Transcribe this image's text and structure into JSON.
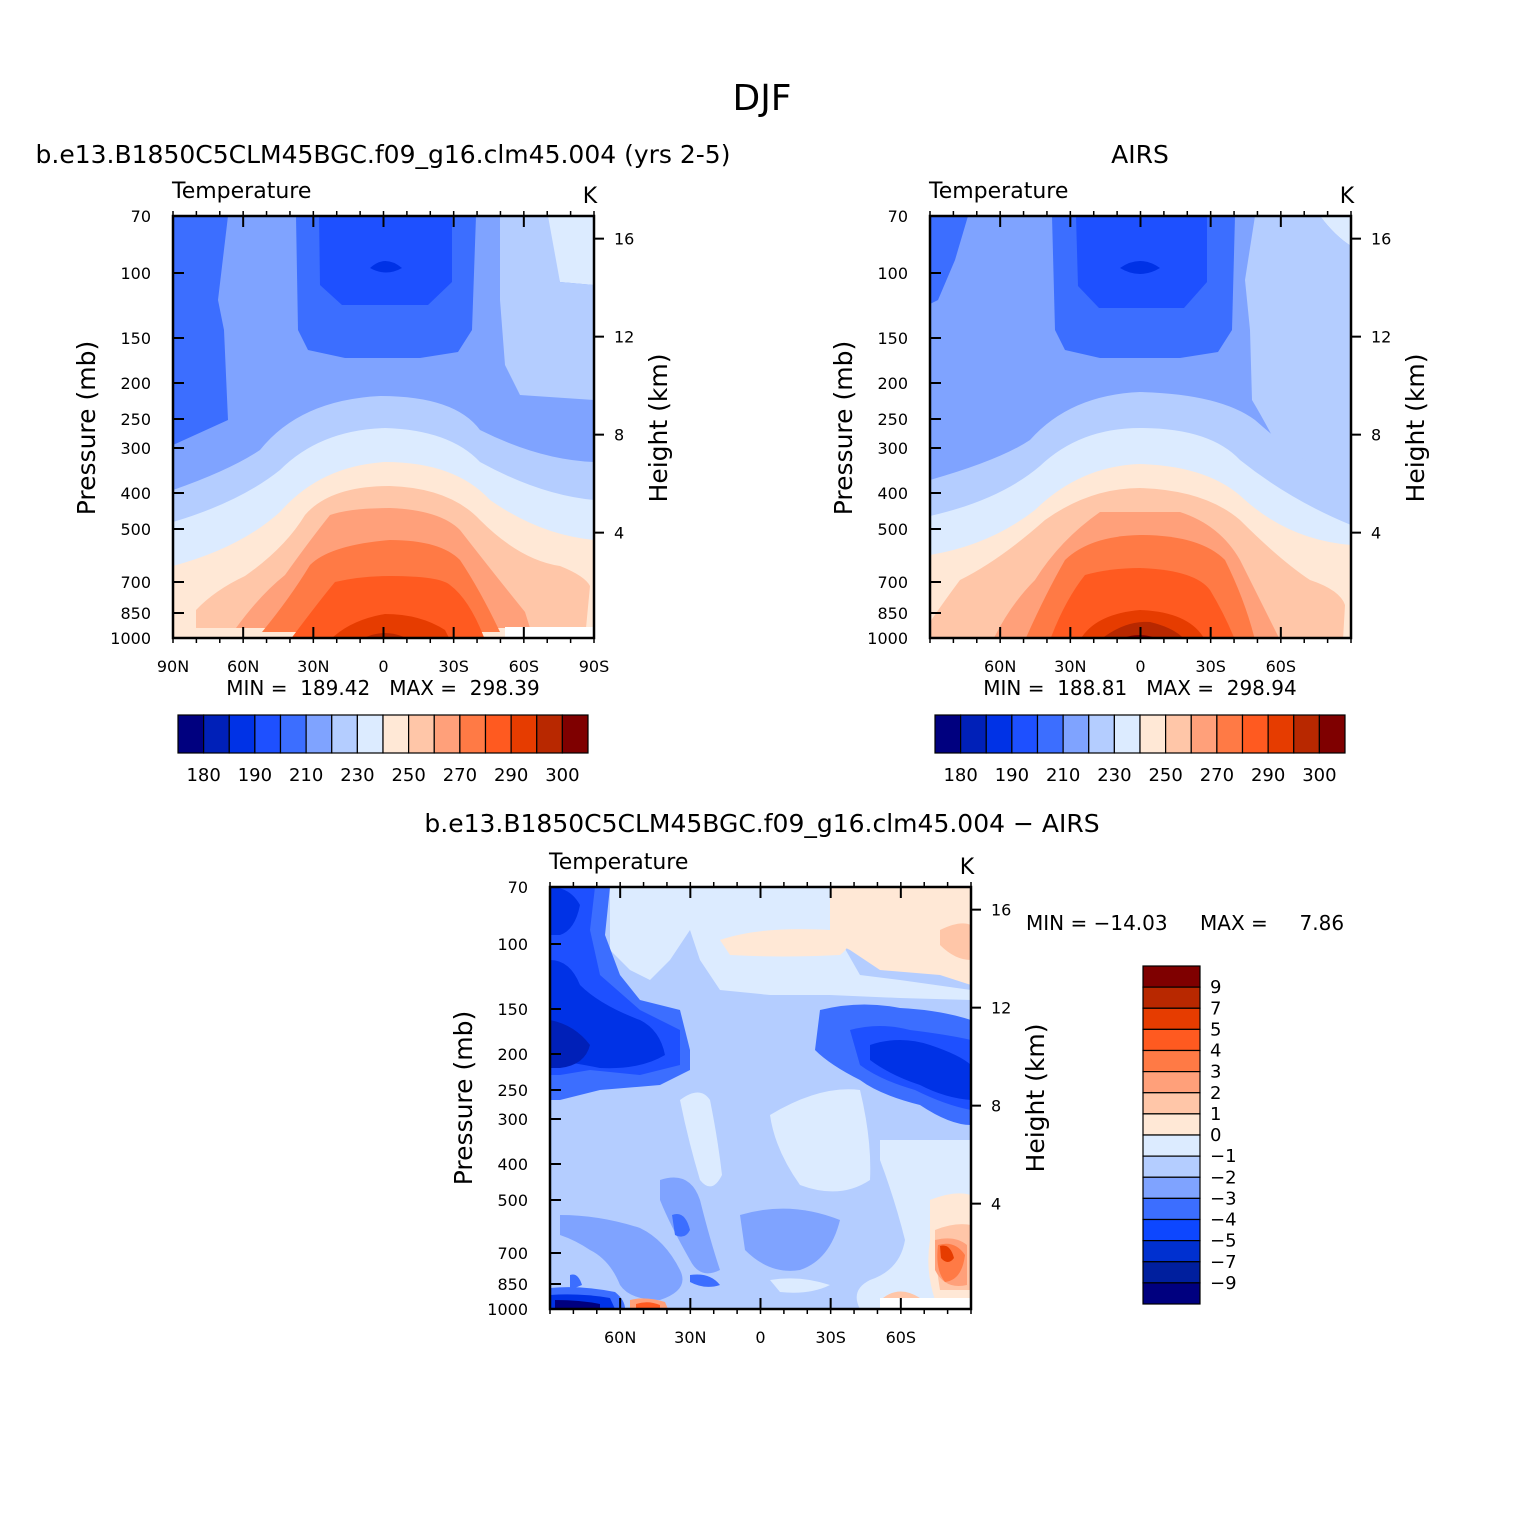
{
  "figure_title": "DJF",
  "colors": {
    "abs_scale": [
      "#00007f",
      "#0020b8",
      "#0032e6",
      "#1e50ff",
      "#3c6eff",
      "#7fa3ff",
      "#b4cdff",
      "#dcebff",
      "#ffe8d6",
      "#ffc6a8",
      "#ffa07a",
      "#ff7a45",
      "#ff5a20",
      "#e63c00",
      "#b82800",
      "#7f0000"
    ],
    "diff_scale": [
      "#00007f",
      "#001f9e",
      "#0030d0",
      "#0d47ff",
      "#3c6eff",
      "#7fa3ff",
      "#b4cdff",
      "#dcebff",
      "#ffe8d6",
      "#ffc6a8",
      "#ffa07a",
      "#ff7a45",
      "#ff5a20",
      "#e63c00",
      "#b82800",
      "#7f0000"
    ]
  },
  "chart_data": [
    {
      "type": "heatmap",
      "title": "b.e13.B1850C5CLM45BGC.f09_g16.clm45.004 (yrs 2-5)",
      "subtitle": "Temperature",
      "units": "K",
      "ylabel": "Pressure (mb)",
      "y2label": "Height (km)",
      "x_ticks": [
        "90N",
        "60N",
        "30N",
        "0",
        "30S",
        "60S",
        "90S"
      ],
      "y_ticks": [
        "70",
        "100",
        "150",
        "200",
        "250",
        "300",
        "400",
        "500",
        "700",
        "850",
        "1000"
      ],
      "y2_ticks": [
        "16",
        "12",
        "8",
        "4"
      ],
      "stats": "MIN =  189.42   MAX =  298.39",
      "legend_labels": [
        "180",
        "190",
        "210",
        "230",
        "250",
        "270",
        "290",
        "300"
      ],
      "levels": [
        180,
        185,
        190,
        200,
        210,
        220,
        230,
        240,
        250,
        260,
        270,
        280,
        290,
        295,
        300
      ],
      "min": 189.42,
      "max": 298.39
    },
    {
      "type": "heatmap",
      "title": "AIRS",
      "subtitle": "Temperature",
      "units": "K",
      "ylabel": "Pressure (mb)",
      "y2label": "Height (km)",
      "x_ticks": [
        "60N",
        "30N",
        "0",
        "30S",
        "60S"
      ],
      "y_ticks": [
        "70",
        "100",
        "150",
        "200",
        "250",
        "300",
        "400",
        "500",
        "700",
        "850",
        "1000"
      ],
      "y2_ticks": [
        "16",
        "12",
        "8",
        "4"
      ],
      "stats": "MIN =  188.81   MAX =  298.94",
      "legend_labels": [
        "180",
        "190",
        "210",
        "230",
        "250",
        "270",
        "290",
        "300"
      ],
      "levels": [
        180,
        185,
        190,
        200,
        210,
        220,
        230,
        240,
        250,
        260,
        270,
        280,
        290,
        295,
        300
      ],
      "min": 188.81,
      "max": 298.94
    },
    {
      "type": "heatmap",
      "title": "b.e13.B1850C5CLM45BGC.f09_g16.clm45.004 − AIRS",
      "subtitle": "Temperature",
      "units": "K",
      "ylabel": "Pressure (mb)",
      "y2label": "Height (km)",
      "x_ticks": [
        "60N",
        "30N",
        "0",
        "30S",
        "60S"
      ],
      "y_ticks": [
        "70",
        "100",
        "150",
        "200",
        "250",
        "300",
        "400",
        "500",
        "700",
        "850",
        "1000"
      ],
      "y2_ticks": [
        "16",
        "12",
        "8",
        "4"
      ],
      "stats_min": "MIN = −14.03",
      "stats_max": "MAX =     7.86",
      "legend_labels": [
        "9",
        "7",
        "5",
        "4",
        "3",
        "2",
        "1",
        "0",
        "−1",
        "−2",
        "−3",
        "−4",
        "−5",
        "−7",
        "−9"
      ],
      "min": -14.03,
      "max": 7.86
    }
  ]
}
